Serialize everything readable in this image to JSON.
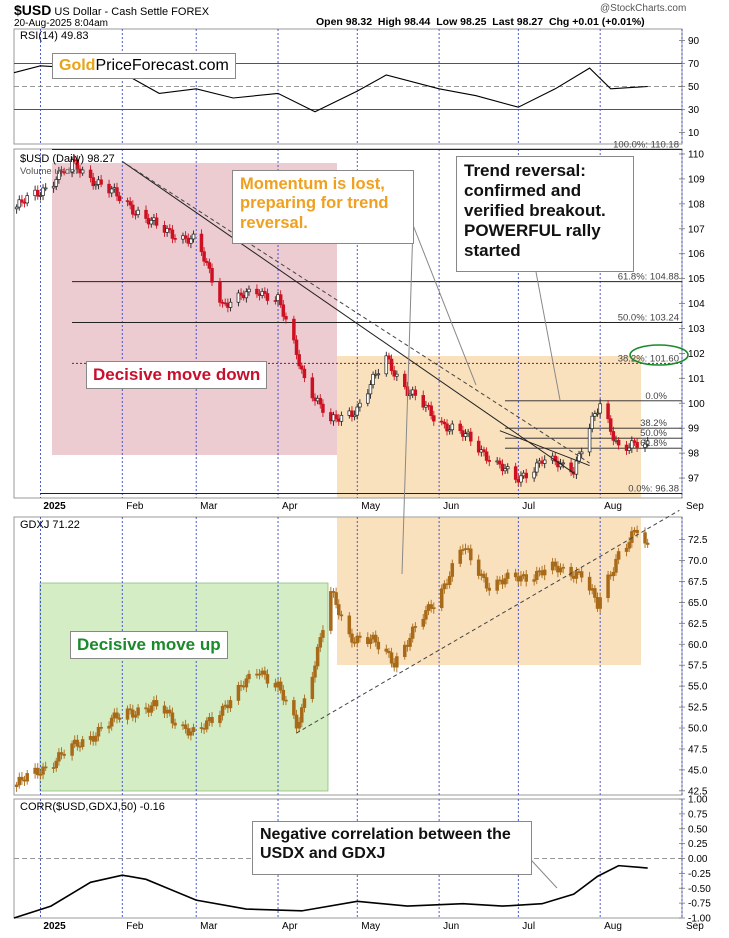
{
  "header": {
    "symbol": "$USD",
    "description": "US Dollar - Cash Settle FOREX",
    "timestamp": "20-Aug-2025 8:04am",
    "open": "Open 98.32",
    "high": "High 98.44",
    "low": "Low 98.25",
    "last": "Last 98.27",
    "chg": "Chg +0.01 (+0.01%)",
    "brand": "@StockCharts.com"
  },
  "logo": {
    "gold": "Gold",
    "rest": "PriceForecast.com"
  },
  "panels": {
    "rsi_title": "RSI(14) 49.83",
    "usd_title": "$USD (Daily) 98.27",
    "volume_title": "Volume undef",
    "gdxj_title": "GDXJ 71.22",
    "corr_title": "CORR($USD,GDXJ,50) -0.16"
  },
  "callouts": {
    "momentum": "Momentum is lost, preparing for trend reversal.",
    "reversal": "Trend reversal: confirmed and verified breakout. POWERFUL rally started",
    "decisive_down": "Decisive move down",
    "decisive_up": "Decisive move up",
    "corr_note": "Negative correlation between the USDX and GDXJ"
  },
  "colors": {
    "up_usd": "#222222",
    "down_usd": "#cc1122",
    "gdxj_candle": "#a86a18",
    "red_zone": "rgba(200,110,120,0.35)",
    "orange_zone": "rgba(240,180,90,0.40)",
    "green_zone": "rgba(150,210,110,0.40)",
    "momentum_text": "#f0a020",
    "down_text": "#c8102e",
    "up_text": "#1a8a2a",
    "month_line": "#2233cc"
  },
  "chart_data": [
    {
      "type": "line",
      "title": "RSI(14) 49.83",
      "ylim": [
        0,
        100
      ],
      "ticks": [
        10,
        30,
        50,
        70,
        90
      ],
      "x": [
        "2024-12-22",
        "2025-01-01",
        "2025-01-15",
        "2025-02-01",
        "2025-02-15",
        "2025-03-01",
        "2025-03-15",
        "2025-04-01",
        "2025-04-15",
        "2025-05-01",
        "2025-05-12",
        "2025-06-01",
        "2025-06-15",
        "2025-07-01",
        "2025-07-15",
        "2025-07-28",
        "2025-08-05",
        "2025-08-19"
      ],
      "values": [
        62,
        68,
        66,
        62,
        44,
        48,
        40,
        44,
        28,
        46,
        60,
        48,
        42,
        32,
        48,
        66,
        48,
        50
      ]
    },
    {
      "type": "candlestick",
      "title": "$USD (Daily) 98.27",
      "ylim": [
        96.2,
        110.2
      ],
      "ticks": [
        97,
        98,
        99,
        100,
        101,
        102,
        103,
        104,
        105,
        106,
        107,
        108,
        109,
        110
      ],
      "fib_levels": [
        {
          "label": "100.0%: 110.18",
          "value": 110.18
        },
        {
          "label": "61.8%: 104.88",
          "value": 104.88
        },
        {
          "label": "50.0%: 103.24",
          "value": 103.24
        },
        {
          "label": "38.2%: 101.60",
          "value": 101.6
        },
        {
          "label": "0.0%: 96.38",
          "value": 96.38
        }
      ],
      "fib_levels_recent": [
        {
          "label": "0.0%",
          "value": 100.1
        },
        {
          "label": "38.2%",
          "value": 99.0
        },
        {
          "label": "50.0%",
          "value": 98.6
        },
        {
          "label": "61.8%",
          "value": 98.2
        }
      ],
      "x": [
        "2024-12-22",
        "2025-01-01",
        "2025-01-13",
        "2025-02-03",
        "2025-02-15",
        "2025-03-01",
        "2025-03-11",
        "2025-03-25",
        "2025-04-01",
        "2025-04-11",
        "2025-04-21",
        "2025-05-01",
        "2025-05-12",
        "2025-05-20",
        "2025-06-01",
        "2025-06-12",
        "2025-06-30",
        "2025-07-10",
        "2025-07-22",
        "2025-07-28",
        "2025-08-01",
        "2025-08-08",
        "2025-08-19"
      ],
      "values": [
        107.8,
        108.5,
        109.6,
        108.0,
        107.0,
        106.5,
        104.0,
        104.5,
        104.2,
        101.0,
        99.2,
        99.8,
        101.8,
        100.5,
        99.3,
        98.6,
        96.9,
        97.7,
        97.4,
        99.0,
        99.9,
        98.3,
        98.27
      ]
    },
    {
      "type": "candlestick",
      "title": "GDXJ 71.22",
      "ylim": [
        42.0,
        75.2
      ],
      "ticks": [
        42.5,
        45.0,
        47.5,
        50.0,
        52.5,
        55.0,
        57.5,
        60.0,
        62.5,
        65.0,
        67.5,
        70.0,
        72.5
      ],
      "x": [
        "2024-12-22",
        "2025-01-01",
        "2025-01-15",
        "2025-02-03",
        "2025-02-15",
        "2025-03-01",
        "2025-03-11",
        "2025-03-25",
        "2025-04-01",
        "2025-04-08",
        "2025-04-15",
        "2025-04-21",
        "2025-04-28",
        "2025-05-06",
        "2025-05-15",
        "2025-06-01",
        "2025-06-10",
        "2025-06-20",
        "2025-07-01",
        "2025-07-15",
        "2025-07-25",
        "2025-07-31",
        "2025-08-08",
        "2025-08-15",
        "2025-08-19"
      ],
      "values": [
        43.0,
        45.0,
        48.0,
        52.0,
        52.5,
        49.0,
        52.5,
        57.0,
        55.0,
        50.0,
        58.0,
        66.0,
        61.0,
        60.5,
        58.0,
        66.0,
        71.5,
        67.0,
        68.0,
        69.0,
        68.5,
        64.5,
        71.0,
        73.5,
        71.22
      ]
    },
    {
      "type": "line",
      "title": "CORR($USD,GDXJ,50) -0.16",
      "ylim": [
        -1.0,
        1.0
      ],
      "ticks": [
        -1.0,
        -0.75,
        -0.5,
        -0.25,
        0.0,
        0.25,
        0.5,
        0.75,
        1.0
      ],
      "x": [
        "2024-12-22",
        "2025-01-05",
        "2025-01-20",
        "2025-02-01",
        "2025-02-10",
        "2025-03-01",
        "2025-03-20",
        "2025-04-10",
        "2025-05-01",
        "2025-05-20",
        "2025-06-10",
        "2025-06-25",
        "2025-07-10",
        "2025-07-22",
        "2025-07-31",
        "2025-08-08",
        "2025-08-19"
      ],
      "values": [
        -1.0,
        -0.8,
        -0.4,
        -0.28,
        -0.35,
        -0.7,
        -0.85,
        -0.88,
        -0.72,
        -0.8,
        -0.76,
        -0.8,
        -0.76,
        -0.6,
        -0.3,
        -0.12,
        -0.16
      ]
    }
  ],
  "x_axis": {
    "year": "2025",
    "months": [
      "Feb",
      "Mar",
      "Apr",
      "May",
      "Jun",
      "Jul",
      "Aug",
      "Sep"
    ]
  }
}
